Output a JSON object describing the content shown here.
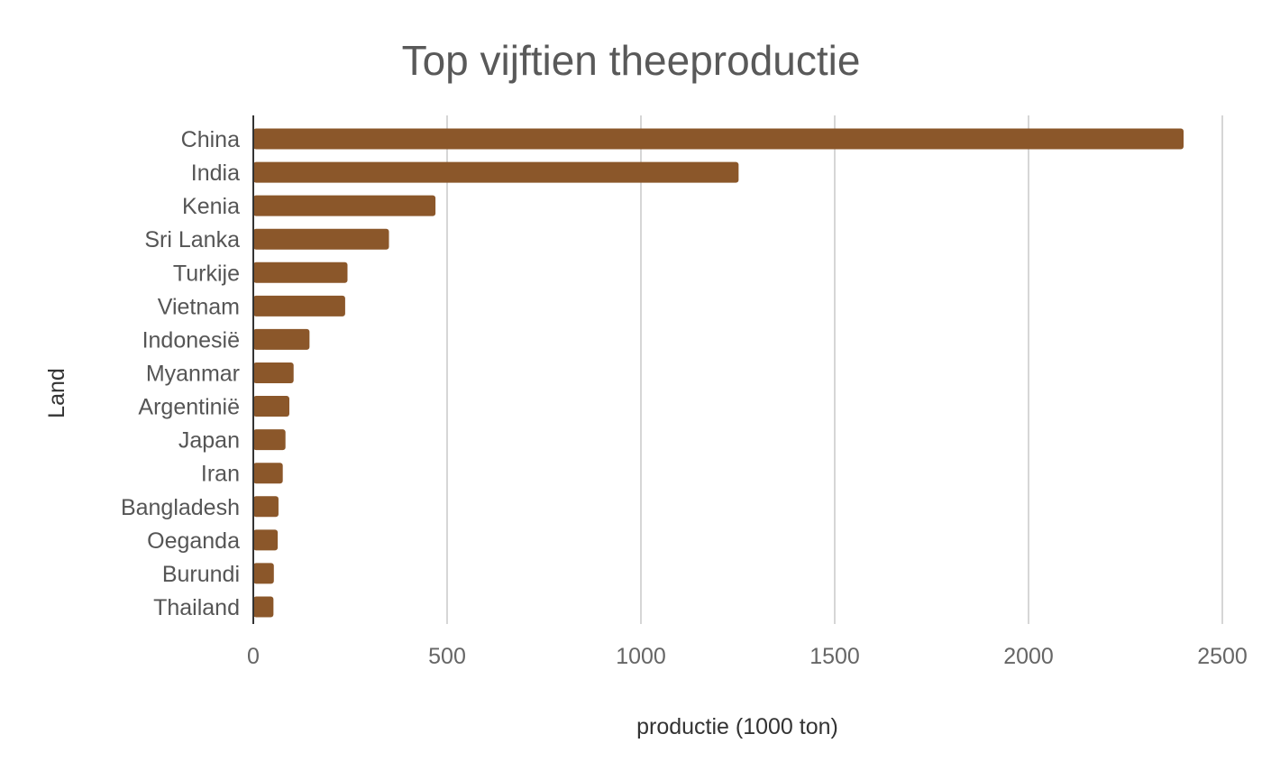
{
  "chart_data": {
    "type": "bar",
    "orientation": "horizontal",
    "title": "Top vijftien theeproductie",
    "xlabel": "productie (1000 ton)",
    "ylabel": "Land",
    "categories": [
      "China",
      "India",
      "Kenia",
      "Sri Lanka",
      "Turkije",
      "Vietnam",
      "Indonesië",
      "Myanmar",
      "Argentinië",
      "Japan",
      "Iran",
      "Bangladesh",
      "Oeganda",
      "Burundi",
      "Thailand"
    ],
    "values": [
      2400,
      1252,
      470,
      350,
      243,
      237,
      145,
      104,
      93,
      83,
      76,
      65,
      63,
      53,
      52
    ],
    "xlim": [
      0,
      2500
    ],
    "xticks": [
      0,
      500,
      1000,
      1500,
      2000,
      2500
    ],
    "xtick_labels": [
      "0",
      "500",
      "1000",
      "1500",
      "2000",
      "2500"
    ],
    "grid": "vertical",
    "legend": "none",
    "bar_color": "#8B572A"
  }
}
